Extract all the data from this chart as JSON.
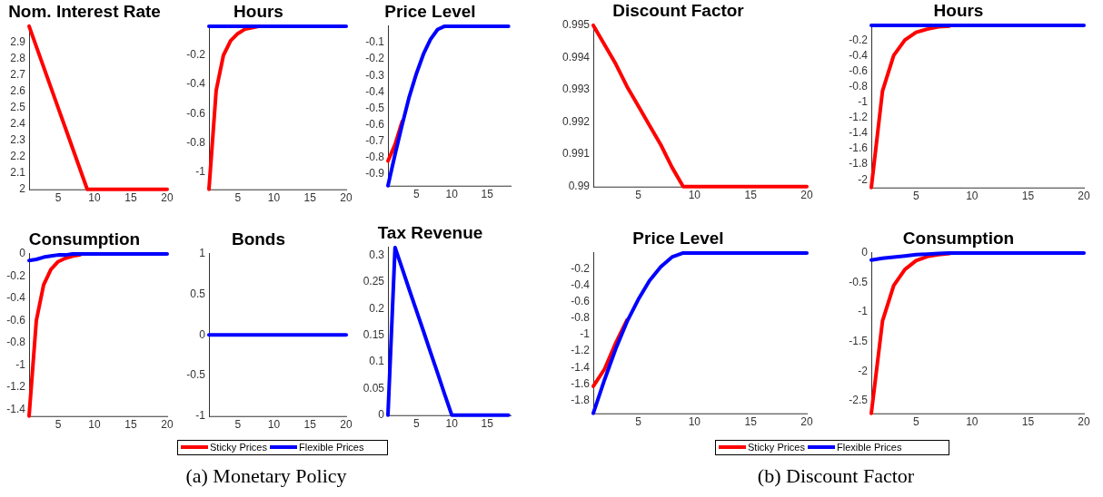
{
  "chart_data": [
    {
      "type": "line",
      "title": "Nom. Interest Rate",
      "x": [
        1,
        2,
        3,
        4,
        5,
        6,
        7,
        8,
        9,
        10,
        11,
        12,
        13,
        14,
        15,
        16,
        17,
        18,
        19,
        20
      ],
      "xlim": [
        1,
        20
      ],
      "xticks": [
        5,
        10,
        15,
        20
      ],
      "ylim": [
        2,
        3
      ],
      "yticks": [
        2,
        2.1,
        2.2,
        2.3,
        2.4,
        2.5,
        2.6,
        2.7,
        2.8,
        2.9
      ],
      "series": [
        {
          "color": "#ff0000",
          "values": [
            3,
            2.875,
            2.75,
            2.625,
            2.5,
            2.375,
            2.25,
            2.125,
            2,
            2,
            2,
            2,
            2,
            2,
            2,
            2,
            2,
            2,
            2,
            2
          ]
        }
      ]
    },
    {
      "type": "line",
      "title": "Hours",
      "x": [
        1,
        2,
        3,
        4,
        5,
        6,
        7,
        8,
        9,
        10,
        11,
        12,
        13,
        14,
        15,
        16,
        17,
        18,
        19,
        20
      ],
      "xlim": [
        1,
        20
      ],
      "xticks": [
        5,
        10,
        15,
        20
      ],
      "ylim": [
        -1.12,
        0
      ],
      "yticks": [
        -1,
        -0.8,
        -0.6,
        -0.4,
        -0.2
      ],
      "series": [
        {
          "color": "#ff0000",
          "values": [
            -1.12,
            -0.44,
            -0.2,
            -0.1,
            -0.05,
            -0.02,
            -0.01,
            0,
            null,
            null,
            null,
            null,
            null,
            null,
            null,
            null,
            null,
            null,
            null,
            null
          ]
        },
        {
          "color": "#0000ff",
          "values": [
            0,
            0,
            0,
            0,
            0,
            0,
            0,
            0,
            0,
            0,
            0,
            0,
            0,
            0,
            0,
            0,
            0,
            0,
            0,
            0
          ]
        }
      ]
    },
    {
      "type": "line",
      "title": "Price Level",
      "x": [
        1,
        2,
        3,
        4,
        5,
        6,
        7,
        8,
        9,
        10,
        11,
        12,
        13,
        14,
        15,
        16,
        17,
        18
      ],
      "xlim": [
        1,
        18.3
      ],
      "xticks": [
        5,
        10,
        15
      ],
      "ylim": [
        -0.97,
        0
      ],
      "yticks": [
        -0.9,
        -0.8,
        -0.7,
        -0.6,
        -0.5,
        -0.4,
        -0.3,
        -0.2,
        -0.1
      ],
      "series": [
        {
          "color": "#ff0000",
          "values": [
            -0.82,
            -0.72,
            -0.58,
            null,
            null,
            null,
            null,
            null,
            null,
            null,
            null,
            null,
            null,
            null,
            null,
            null,
            null,
            null
          ]
        },
        {
          "color": "#0000ff",
          "values": [
            -0.97,
            -0.78,
            -0.6,
            -0.43,
            -0.29,
            -0.17,
            -0.08,
            -0.02,
            0,
            0,
            0,
            0,
            0,
            0,
            0,
            0,
            0,
            0
          ]
        }
      ]
    },
    {
      "type": "line",
      "title": "Consumption",
      "x": [
        1,
        2,
        3,
        4,
        5,
        6,
        7,
        8,
        9,
        10,
        11,
        12,
        13,
        14,
        15,
        16,
        17,
        18,
        19,
        20
      ],
      "xlim": [
        1,
        20
      ],
      "xticks": [
        5,
        10,
        15,
        20
      ],
      "ylim": [
        -1.46,
        0
      ],
      "yticks": [
        -1.4,
        -1.2,
        -1,
        -0.8,
        -0.6,
        -0.4,
        -0.2,
        0
      ],
      "legend": "bottom",
      "series": [
        {
          "name": "Sticky Prices",
          "color": "#ff0000",
          "values": [
            -1.46,
            -0.6,
            -0.28,
            -0.14,
            -0.07,
            -0.04,
            -0.02,
            -0.01,
            null,
            null,
            null,
            null,
            null,
            null,
            null,
            null,
            null,
            null,
            null,
            null
          ]
        },
        {
          "name": "Flexible Prices",
          "color": "#0000ff",
          "values": [
            -0.06,
            -0.05,
            -0.03,
            -0.02,
            -0.01,
            -0.01,
            0,
            0,
            0,
            0,
            0,
            0,
            0,
            0,
            0,
            0,
            0,
            0,
            0,
            0
          ]
        }
      ]
    },
    {
      "type": "line",
      "title": "Bonds",
      "x": [
        1,
        2,
        3,
        4,
        5,
        6,
        7,
        8,
        9,
        10,
        11,
        12,
        13,
        14,
        15,
        16,
        17,
        18,
        19,
        20
      ],
      "xlim": [
        1,
        20
      ],
      "xticks": [
        5,
        10,
        15,
        20
      ],
      "ylim": [
        -1,
        1
      ],
      "yticks": [
        -1,
        -0.5,
        0,
        0.5,
        1
      ],
      "annotations": [
        "(a) Monetary Policy"
      ],
      "series": [
        {
          "color": "#0000ff",
          "values": [
            0,
            0,
            0,
            0,
            0,
            0,
            0,
            0,
            0,
            0,
            0,
            0,
            0,
            0,
            0,
            0,
            0,
            0,
            0,
            0
          ]
        }
      ]
    },
    {
      "type": "line",
      "title": "Tax Revenue",
      "x": [
        1,
        2,
        3,
        4,
        5,
        6,
        7,
        8,
        9,
        10,
        11,
        12,
        13,
        14,
        15,
        16,
        17,
        18
      ],
      "xlim": [
        1,
        18.3
      ],
      "xticks": [
        5,
        10,
        15
      ],
      "ylim": [
        0,
        0.315
      ],
      "yticks": [
        0,
        0.05,
        0.1,
        0.15,
        0.2,
        0.25,
        0.3
      ],
      "series": [
        {
          "color": "#0000ff",
          "values": [
            0,
            0.315,
            0.276,
            0.236,
            0.197,
            0.158,
            0.118,
            0.079,
            0.039,
            0,
            0,
            0,
            0,
            0,
            0,
            0,
            0,
            0
          ]
        }
      ]
    },
    {
      "type": "line",
      "title": "Discount Factor",
      "x": [
        1,
        2,
        3,
        4,
        5,
        6,
        7,
        8,
        9,
        10,
        11,
        12,
        13,
        14,
        15,
        16,
        17,
        18,
        19,
        20
      ],
      "xlim": [
        1,
        20
      ],
      "xticks": [
        5,
        10,
        15,
        20
      ],
      "ylim": [
        0.99,
        0.995
      ],
      "yticks": [
        0.99,
        0.991,
        0.992,
        0.993,
        0.994,
        0.995
      ],
      "series": [
        {
          "color": "#ff0000",
          "values": [
            0.995,
            0.9944,
            0.9938,
            0.9931,
            0.9925,
            0.9919,
            0.9913,
            0.9906,
            0.99,
            0.99,
            0.99,
            0.99,
            0.99,
            0.99,
            0.99,
            0.99,
            0.99,
            0.99,
            0.99,
            0.99
          ]
        }
      ]
    },
    {
      "type": "line",
      "title": "Hours",
      "x": [
        1,
        2,
        3,
        4,
        5,
        6,
        7,
        8,
        9,
        10,
        11,
        12,
        13,
        14,
        15,
        16,
        17,
        18,
        19,
        20
      ],
      "xlim": [
        1,
        20
      ],
      "xticks": [
        5,
        10,
        15,
        20
      ],
      "ylim": [
        -2.1,
        0
      ],
      "yticks": [
        -2,
        -1.8,
        -1.6,
        -1.4,
        -1.2,
        -1,
        -0.8,
        -0.6,
        -0.4,
        -0.2
      ],
      "series": [
        {
          "color": "#ff0000",
          "values": [
            -2.1,
            -0.85,
            -0.39,
            -0.19,
            -0.09,
            -0.05,
            -0.02,
            -0.01,
            null,
            null,
            null,
            null,
            null,
            null,
            null,
            null,
            null,
            null,
            null,
            null
          ]
        },
        {
          "color": "#0000ff",
          "values": [
            0,
            0,
            0,
            0,
            0,
            0,
            0,
            0,
            0,
            0,
            0,
            0,
            0,
            0,
            0,
            0,
            0,
            0,
            0,
            0
          ]
        }
      ]
    },
    {
      "type": "line",
      "title": "Price Level",
      "x": [
        1,
        2,
        3,
        4,
        5,
        6,
        7,
        8,
        9,
        10,
        11,
        12,
        13,
        14,
        15,
        16,
        17,
        18,
        19,
        20
      ],
      "xlim": [
        1,
        20
      ],
      "xticks": [
        5,
        10,
        15,
        20
      ],
      "ylim": [
        -1.96,
        0
      ],
      "yticks": [
        -1.8,
        -1.6,
        -1.4,
        -1.2,
        -1,
        -0.8,
        -0.6,
        -0.4,
        -0.2
      ],
      "legend": "bottom",
      "annotations": [
        "(b) Discount Factor"
      ],
      "series": [
        {
          "name": "Sticky Prices",
          "color": "#ff0000",
          "values": [
            -1.63,
            -1.42,
            -1.1,
            -0.82,
            null,
            null,
            null,
            null,
            null,
            null,
            null,
            null,
            null,
            null,
            null,
            null,
            null,
            null,
            null,
            null
          ]
        },
        {
          "name": "Flexible Prices",
          "color": "#0000ff",
          "values": [
            -1.96,
            -1.55,
            -1.17,
            -0.84,
            -0.57,
            -0.34,
            -0.17,
            -0.05,
            0,
            0,
            0,
            0,
            0,
            0,
            0,
            0,
            0,
            0,
            0,
            0
          ]
        }
      ]
    },
    {
      "type": "line",
      "title": "Consumption",
      "x": [
        1,
        2,
        3,
        4,
        5,
        6,
        7,
        8,
        9,
        10,
        11,
        12,
        13,
        14,
        15,
        16,
        17,
        18,
        19,
        20
      ],
      "xlim": [
        1,
        20
      ],
      "xticks": [
        5,
        10,
        15,
        20
      ],
      "ylim": [
        -2.71,
        0
      ],
      "yticks": [
        -2.5,
        -2,
        -1.5,
        -1,
        -0.5,
        0
      ],
      "series": [
        {
          "color": "#ff0000",
          "values": [
            -2.71,
            -1.15,
            -0.55,
            -0.28,
            -0.13,
            -0.06,
            -0.03,
            -0.01,
            null,
            null,
            null,
            null,
            null,
            null,
            null,
            null,
            null,
            null,
            null,
            null
          ]
        },
        {
          "color": "#0000ff",
          "values": [
            -0.12,
            -0.09,
            -0.07,
            -0.05,
            -0.03,
            -0.02,
            -0.01,
            0,
            0,
            0,
            0,
            0,
            0,
            0,
            0,
            0,
            0,
            0,
            0,
            0
          ]
        }
      ]
    }
  ]
}
